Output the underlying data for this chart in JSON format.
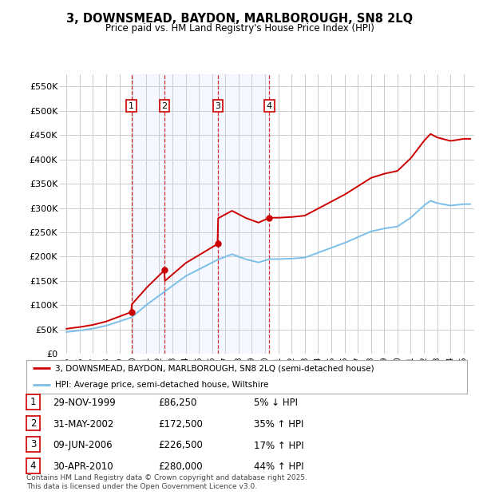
{
  "title": "3, DOWNSMEAD, BAYDON, MARLBOROUGH, SN8 2LQ",
  "subtitle": "Price paid vs. HM Land Registry's House Price Index (HPI)",
  "ylabel_ticks": [
    "£0",
    "£50K",
    "£100K",
    "£150K",
    "£200K",
    "£250K",
    "£300K",
    "£350K",
    "£400K",
    "£450K",
    "£500K",
    "£550K"
  ],
  "ytick_values": [
    0,
    50000,
    100000,
    150000,
    200000,
    250000,
    300000,
    350000,
    400000,
    450000,
    500000,
    550000
  ],
  "ylim": [
    0,
    575000
  ],
  "xlim_start": 1994.5,
  "xlim_end": 2025.8,
  "transaction_dates": [
    1999.91,
    2002.41,
    2006.44,
    2010.33
  ],
  "transaction_prices": [
    86250,
    172500,
    226500,
    280000
  ],
  "transaction_labels": [
    "1",
    "2",
    "3",
    "4"
  ],
  "transaction_info": [
    {
      "label": "1",
      "date": "29-NOV-1999",
      "price": "£86,250",
      "hpi": "5% ↓ HPI"
    },
    {
      "label": "2",
      "date": "31-MAY-2002",
      "price": "£172,500",
      "hpi": "35% ↑ HPI"
    },
    {
      "label": "3",
      "date": "09-JUN-2006",
      "price": "£226,500",
      "hpi": "17% ↑ HPI"
    },
    {
      "label": "4",
      "date": "30-APR-2010",
      "price": "£280,000",
      "hpi": "44% ↑ HPI"
    }
  ],
  "legend_line1": "3, DOWNSMEAD, BAYDON, MARLBOROUGH, SN8 2LQ (semi-detached house)",
  "legend_line2": "HPI: Average price, semi-detached house, Wiltshire",
  "footer": "Contains HM Land Registry data © Crown copyright and database right 2025.\nThis data is licensed under the Open Government Licence v3.0.",
  "hpi_color": "#7bbfe8",
  "price_color": "#cc0000",
  "transaction_box_color": "#cc0000",
  "shading_color": "#cce0ff",
  "background_color": "#ffffff",
  "grid_color": "#cccccc"
}
